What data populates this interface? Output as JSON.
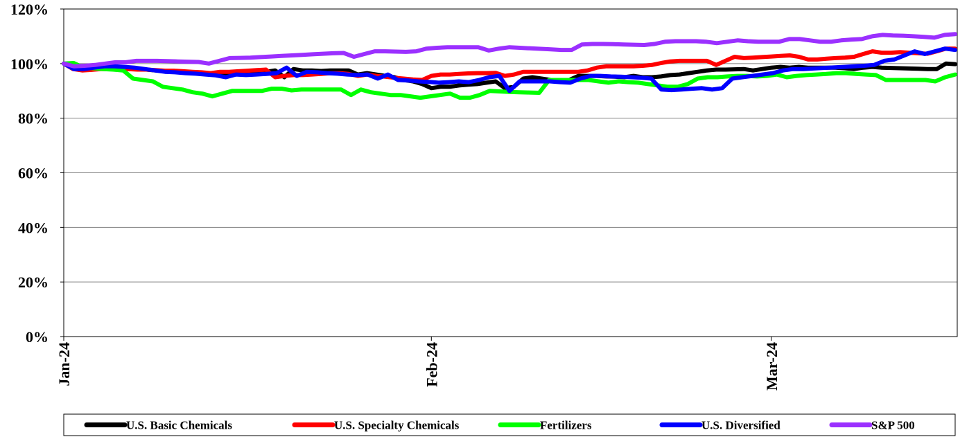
{
  "chart_data": {
    "type": "line",
    "title": "",
    "xlabel": "",
    "ylabel": "",
    "ylim": [
      0,
      120
    ],
    "y_ticks": [
      0,
      20,
      40,
      60,
      80,
      100,
      120
    ],
    "y_tick_labels": [
      "0%",
      "20%",
      "40%",
      "60%",
      "80%",
      "100%",
      "120%"
    ],
    "x_ticks": [
      {
        "label": "Jan-24",
        "index": 0
      },
      {
        "label": "Feb-24",
        "index": 40
      },
      {
        "label": "Mar-24",
        "index": 77
      }
    ],
    "grid": "horizontal",
    "legend": "bottom",
    "series": [
      {
        "name": "U.S. Basic Chemicals",
        "color": "#000000",
        "values": [
          100.0,
          98.5,
          98.0,
          99.0,
          99.0,
          98.8,
          98.5,
          98.5,
          98.0,
          97.8,
          97.5,
          97.3,
          97.0,
          96.8,
          96.5,
          96.3,
          96.0,
          95.8,
          96.5,
          96.3,
          96.5,
          96.8,
          97.0,
          97.5,
          95.0,
          98.0,
          97.5,
          97.5,
          97.3,
          97.5,
          97.5,
          97.5,
          96.0,
          96.5,
          96.0,
          95.5,
          95.0,
          94.0,
          93.5,
          92.5,
          91.0,
          91.5,
          91.5,
          92.0,
          92.3,
          92.5,
          93.0,
          93.5,
          91.0,
          91.5,
          94.5,
          95.0,
          94.5,
          94.0,
          93.8,
          94.0,
          95.5,
          95.5,
          95.5,
          95.3,
          95.2,
          95.0,
          95.5,
          95.0,
          95.0,
          95.3,
          95.8,
          96.0,
          96.5,
          97.0,
          97.5,
          97.8,
          97.8,
          97.9,
          98.0,
          97.5,
          98.0,
          98.5,
          98.8,
          98.5,
          98.8,
          98.5,
          98.5,
          98.5,
          98.5,
          98.3,
          98.0,
          98.5,
          98.8,
          98.5,
          98.4,
          98.3,
          98.2,
          98.1,
          98.0,
          98.0,
          100.0,
          99.8
        ]
      },
      {
        "name": "U.S. Specialty Chemicals",
        "color": "#ff0000",
        "values": [
          100.0,
          98.0,
          97.5,
          97.7,
          98.0,
          98.0,
          98.2,
          98.0,
          97.8,
          97.8,
          97.6,
          97.4,
          97.4,
          97.2,
          97.0,
          96.8,
          96.5,
          97.0,
          97.0,
          97.2,
          97.4,
          97.6,
          97.8,
          95.0,
          95.5,
          95.8,
          95.8,
          96.0,
          96.2,
          96.5,
          96.5,
          96.2,
          95.5,
          96.0,
          95.5,
          95.2,
          94.8,
          94.5,
          94.2,
          94.0,
          95.5,
          96.0,
          96.0,
          96.2,
          96.4,
          96.5,
          96.5,
          96.6,
          95.5,
          96.0,
          97.0,
          97.0,
          97.0,
          97.0,
          97.0,
          97.0,
          97.0,
          97.5,
          98.5,
          99.0,
          99.0,
          99.0,
          99.0,
          99.2,
          99.5,
          100.2,
          100.8,
          101.0,
          101.0,
          101.0,
          101.0,
          99.5,
          101.0,
          102.5,
          102.0,
          102.2,
          102.4,
          102.6,
          102.8,
          103.0,
          102.5,
          101.5,
          101.5,
          101.8,
          102.0,
          102.2,
          102.5,
          103.5,
          104.5,
          104.0,
          104.0,
          104.2,
          104.0,
          103.8,
          103.6,
          104.5,
          105.5,
          105.5
        ]
      },
      {
        "name": "Fertilizers",
        "color": "#00ff00",
        "values": [
          100.0,
          100.2,
          98.5,
          98.3,
          98.0,
          97.8,
          97.5,
          94.5,
          94.0,
          93.5,
          91.5,
          91.0,
          90.5,
          89.5,
          89.0,
          88.0,
          89.0,
          90.0,
          90.0,
          90.0,
          90.0,
          90.8,
          90.8,
          90.2,
          90.5,
          90.5,
          90.5,
          90.5,
          90.5,
          88.5,
          90.5,
          89.5,
          89.0,
          88.5,
          88.5,
          88.0,
          87.5,
          88.0,
          88.5,
          89.0,
          87.5,
          87.5,
          88.5,
          90.0,
          89.8,
          89.6,
          89.5,
          89.4,
          89.3,
          94.0,
          94.0,
          94.0,
          94.0,
          94.0,
          93.5,
          93.0,
          93.5,
          93.2,
          93.0,
          92.5,
          92.0,
          91.5,
          91.5,
          92.5,
          94.5,
          95.0,
          95.0,
          95.3,
          95.5,
          95.5,
          95.3,
          95.5,
          96.0,
          95.0,
          95.5,
          95.8,
          96.0,
          96.2,
          96.5,
          96.5,
          96.2,
          96.0,
          95.8,
          94.0,
          94.0,
          94.0,
          94.0,
          94.0,
          93.5,
          95.0,
          96.0
        ]
      },
      {
        "name": "U.S. Diversified",
        "color": "#0000ff",
        "values": [
          100.0,
          98.0,
          98.0,
          98.5,
          99.0,
          99.0,
          98.8,
          98.5,
          98.0,
          97.5,
          97.0,
          96.8,
          96.5,
          96.3,
          96.0,
          95.7,
          95.0,
          96.0,
          95.8,
          96.0,
          96.2,
          96.5,
          98.5,
          95.5,
          97.0,
          96.8,
          96.5,
          96.3,
          96.0,
          95.8,
          96.0,
          94.5,
          96.0,
          94.0,
          93.8,
          93.5,
          93.3,
          93.0,
          93.2,
          93.5,
          93.2,
          94.0,
          95.0,
          95.5,
          90.0,
          93.5,
          93.5,
          93.5,
          93.5,
          93.2,
          93.0,
          94.5,
          95.5,
          95.5,
          95.3,
          95.2,
          95.0,
          94.8,
          94.5,
          90.5,
          90.3,
          90.5,
          90.8,
          91.0,
          90.5,
          91.0,
          94.5,
          95.0,
          95.5,
          96.0,
          96.5,
          97.5,
          98.0,
          98.0,
          98.2,
          98.4,
          98.6,
          98.8,
          99.0,
          99.2,
          99.5,
          101.0,
          101.5,
          103.0,
          104.5,
          103.5,
          104.5,
          105.5,
          105.0
        ]
      },
      {
        "name": "S&P 500",
        "color": "#9b30ff",
        "values": [
          100.0,
          99.0,
          99.2,
          99.5,
          100.0,
          100.5,
          100.5,
          101.0,
          101.0,
          101.0,
          100.9,
          100.8,
          100.7,
          100.6,
          100.0,
          101.0,
          102.0,
          102.1,
          102.2,
          102.4,
          102.6,
          102.8,
          103.0,
          103.2,
          103.4,
          103.6,
          103.8,
          103.9,
          102.5,
          103.5,
          104.5,
          104.5,
          104.4,
          104.3,
          104.5,
          105.5,
          105.8,
          106.0,
          106.0,
          106.0,
          106.0,
          104.8,
          105.5,
          106.0,
          105.8,
          105.6,
          105.4,
          105.2,
          105.0,
          105.0,
          107.0,
          107.2,
          107.2,
          107.1,
          107.0,
          106.9,
          106.8,
          107.2,
          108.0,
          108.2,
          108.2,
          108.2,
          108.0,
          107.5,
          108.0,
          108.5,
          108.2,
          108.0,
          108.0,
          108.0,
          109.0,
          109.0,
          108.5,
          108.0,
          108.0,
          108.5,
          108.8,
          109.0,
          110.0,
          110.5,
          110.3,
          110.2,
          110.0,
          109.8,
          109.5,
          110.5,
          110.8
        ]
      }
    ]
  }
}
